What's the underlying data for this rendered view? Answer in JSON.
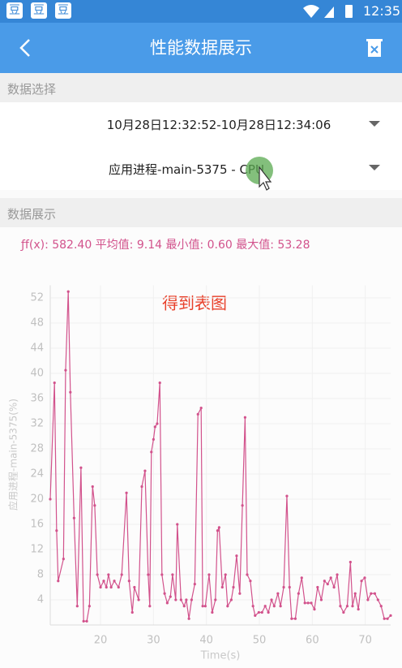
{
  "status_bar": {
    "icons": [
      "豆",
      "豆",
      "豆"
    ],
    "time": "12:35"
  },
  "header": {
    "title": "性能数据展示"
  },
  "selection": {
    "label": "数据选择",
    "time_range": "10月28日12:32:52-10月28日12:34:06",
    "process": "应用进程-main-5375 - CPU"
  },
  "display": {
    "label": "数据展示",
    "stats": "ƒf(x): 582.40 平均值: 9.14 最小值: 0.60 最大值: 53.28"
  },
  "chart_data": {
    "type": "line",
    "annotation": "得到表图",
    "y_label": "应用进程-main-5375(%)",
    "x_label": "Time(s)",
    "xlim": [
      10.5,
      74.8
    ],
    "xticks": [
      20,
      30,
      40,
      50,
      60,
      70
    ],
    "ylim": [
      0,
      54
    ],
    "yticks": [
      4,
      8,
      12,
      16,
      20,
      24,
      28,
      32,
      36,
      40,
      44,
      48,
      52
    ],
    "grid": true,
    "series": [
      {
        "name": "应用进程-main-5375",
        "color": "#d2528c",
        "x": [
          10.5,
          11.3,
          11.7,
          12.0,
          13.0,
          13.4,
          13.9,
          14.3,
          15.0,
          15.6,
          16.3,
          16.8,
          17.4,
          17.9,
          18.5,
          18.9,
          19.4,
          20.0,
          20.6,
          21.1,
          21.5,
          22.0,
          22.6,
          23.4,
          24.0,
          24.9,
          25.4,
          26.0,
          26.4,
          27.2,
          27.8,
          28.4,
          29.0,
          29.3,
          29.6,
          30.0,
          30.3,
          30.7,
          31.2,
          31.6,
          32.1,
          32.6,
          33.2,
          33.6,
          34.2,
          34.5,
          35.2,
          35.8,
          36.2,
          36.7,
          37.2,
          37.8,
          38.4,
          39.0,
          39.3,
          39.8,
          40.5,
          41.1,
          41.7,
          42.1,
          42.4,
          43.0,
          43.6,
          44.0,
          44.7,
          45.1,
          45.7,
          46.3,
          46.8,
          47.3,
          47.7,
          48.3,
          48.8,
          49.2,
          49.9,
          50.5,
          51.1,
          51.7,
          52.3,
          52.8,
          53.5,
          54.0,
          54.6,
          55.2,
          55.7,
          56.1,
          56.8,
          57.4,
          58.0,
          58.6,
          59.2,
          59.8,
          60.4,
          61.0,
          61.7,
          62.3,
          62.9,
          63.5,
          64.1,
          64.7,
          65.3,
          65.9,
          66.6,
          67.2,
          67.6,
          68.1,
          68.7,
          69.3,
          69.9,
          70.5,
          71.1,
          71.8,
          72.4,
          73.0,
          73.6,
          74.2,
          74.8
        ],
        "values": [
          20,
          38.5,
          15,
          7,
          10.5,
          40.5,
          53,
          37,
          17,
          3,
          25,
          0.6,
          0.6,
          3,
          22,
          19,
          8,
          6,
          7,
          6,
          8,
          6,
          7,
          6,
          8,
          21,
          7,
          2,
          6,
          4,
          22,
          24.5,
          8,
          3,
          27.5,
          29.5,
          31.5,
          32,
          38.5,
          8,
          5,
          3.5,
          4.5,
          8,
          4,
          16,
          4,
          3,
          4,
          1,
          4,
          6.5,
          33.5,
          34.5,
          3,
          3,
          8,
          2,
          4,
          15,
          15.5,
          6,
          8,
          3,
          4,
          6,
          11,
          5,
          19,
          33,
          8,
          7,
          3,
          1.5,
          2,
          2,
          3,
          2,
          4,
          3,
          5,
          3,
          6,
          20.5,
          6,
          1,
          1,
          5,
          7.5,
          3.5,
          3.5,
          3.5,
          2.5,
          6,
          4,
          7,
          6.5,
          7.5,
          6,
          8,
          3,
          2,
          3,
          10,
          3,
          5,
          2.5,
          7,
          7.5,
          4,
          5,
          5,
          4,
          3,
          1,
          1,
          1.5
        ]
      }
    ]
  }
}
